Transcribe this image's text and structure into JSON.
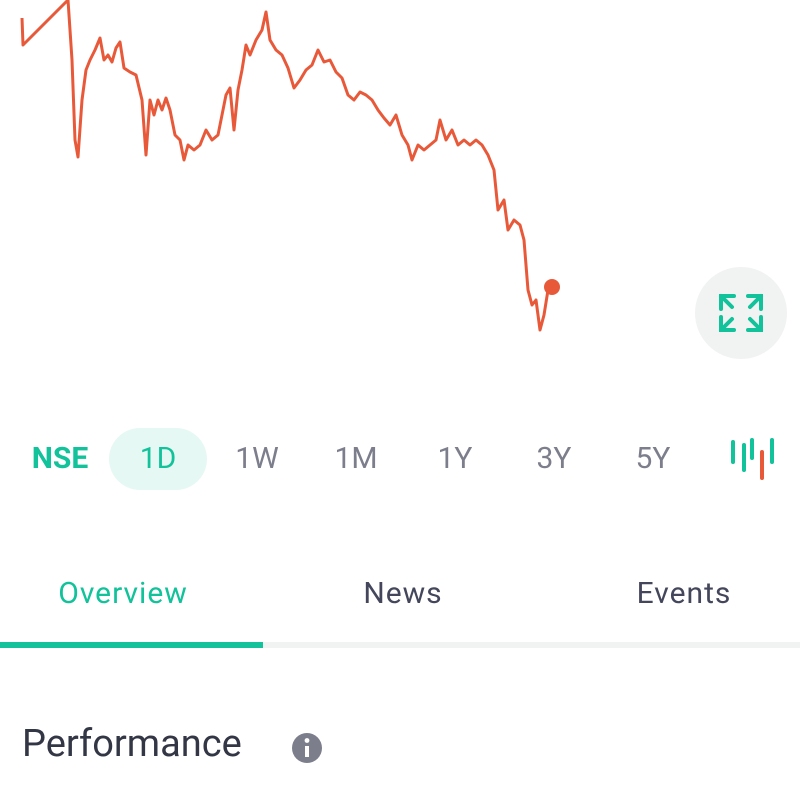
{
  "price_chart": {
    "type": "line",
    "color": "#e8593a",
    "xlim": [
      0,
      800
    ],
    "ylim": [
      0,
      340
    ],
    "x": [
      22,
      23,
      68,
      72,
      75,
      78,
      82,
      86,
      90,
      95,
      100,
      104,
      108,
      112,
      116,
      120,
      124,
      130,
      136,
      142,
      146,
      150,
      154,
      158,
      162,
      166,
      170,
      175,
      180,
      184,
      188,
      194,
      200,
      206,
      212,
      218,
      222,
      226,
      230,
      234,
      238,
      242,
      246,
      250,
      256,
      262,
      266,
      270,
      276,
      282,
      288,
      294,
      300,
      306,
      312,
      318,
      324,
      330,
      336,
      342,
      348,
      354,
      360,
      366,
      372,
      378,
      384,
      390,
      396,
      402,
      408,
      412,
      418,
      424,
      430,
      436,
      440,
      446,
      452,
      458,
      464,
      470,
      476,
      482,
      488,
      494,
      498,
      504,
      508,
      514,
      520,
      524,
      528,
      532,
      536,
      540,
      544,
      548,
      552
    ],
    "values": [
      322,
      295,
      340,
      280,
      200,
      183,
      240,
      270,
      280,
      290,
      302,
      280,
      285,
      278,
      292,
      298,
      272,
      268,
      265,
      240,
      185,
      240,
      225,
      240,
      230,
      242,
      230,
      205,
      200,
      180,
      195,
      190,
      195,
      210,
      200,
      205,
      225,
      245,
      252,
      210,
      250,
      270,
      295,
      285,
      300,
      310,
      328,
      300,
      290,
      285,
      272,
      252,
      260,
      270,
      275,
      290,
      278,
      280,
      268,
      262,
      245,
      240,
      248,
      245,
      240,
      230,
      222,
      215,
      225,
      205,
      195,
      180,
      195,
      190,
      195,
      200,
      220,
      200,
      210,
      195,
      200,
      195,
      200,
      195,
      185,
      170,
      130,
      140,
      110,
      120,
      115,
      100,
      50,
      35,
      40,
      10,
      25,
      50,
      53
    ]
  },
  "range": {
    "exchange": "NSE",
    "selected": 0,
    "options": [
      "1D",
      "1W",
      "1M",
      "1Y",
      "3Y",
      "5Y"
    ]
  },
  "tabs": {
    "selected": 0,
    "items": [
      "Overview",
      "News",
      "Events"
    ]
  },
  "section": {
    "title": "Performance"
  }
}
